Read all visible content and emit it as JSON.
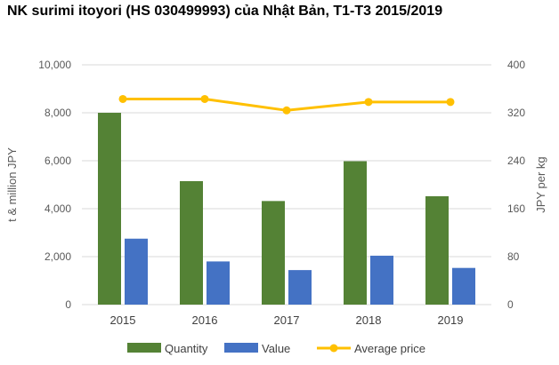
{
  "chart_data": {
    "type": "bar",
    "title": "NK  surimi itoyori (HS 030499993) của Nhật Bản, T1-T3 2015/2019",
    "categories": [
      "2015",
      "2016",
      "2017",
      "2018",
      "2019"
    ],
    "series": [
      {
        "name": "Quantity",
        "type": "bar",
        "axis": "left",
        "color": "#548235",
        "values": [
          8000,
          5150,
          4320,
          5980,
          4520
        ]
      },
      {
        "name": "Value",
        "type": "bar",
        "axis": "left",
        "color": "#4472C4",
        "values": [
          2750,
          1800,
          1440,
          2040,
          1530
        ]
      },
      {
        "name": "Average price",
        "type": "line",
        "axis": "right",
        "color": "#FFC000",
        "values": [
          343,
          343,
          324,
          338,
          338
        ]
      }
    ],
    "ylabel": "t & million JPY",
    "y2label": "JPY per kg",
    "ylim": [
      0,
      10000
    ],
    "y2lim": [
      0,
      400
    ],
    "yticks": [
      "0",
      "2,000",
      "4,000",
      "6,000",
      "8,000",
      "10,000"
    ],
    "y2ticks": [
      "0",
      "80",
      "160",
      "240",
      "320",
      "400"
    ],
    "grid": true,
    "legend": "bottom"
  }
}
